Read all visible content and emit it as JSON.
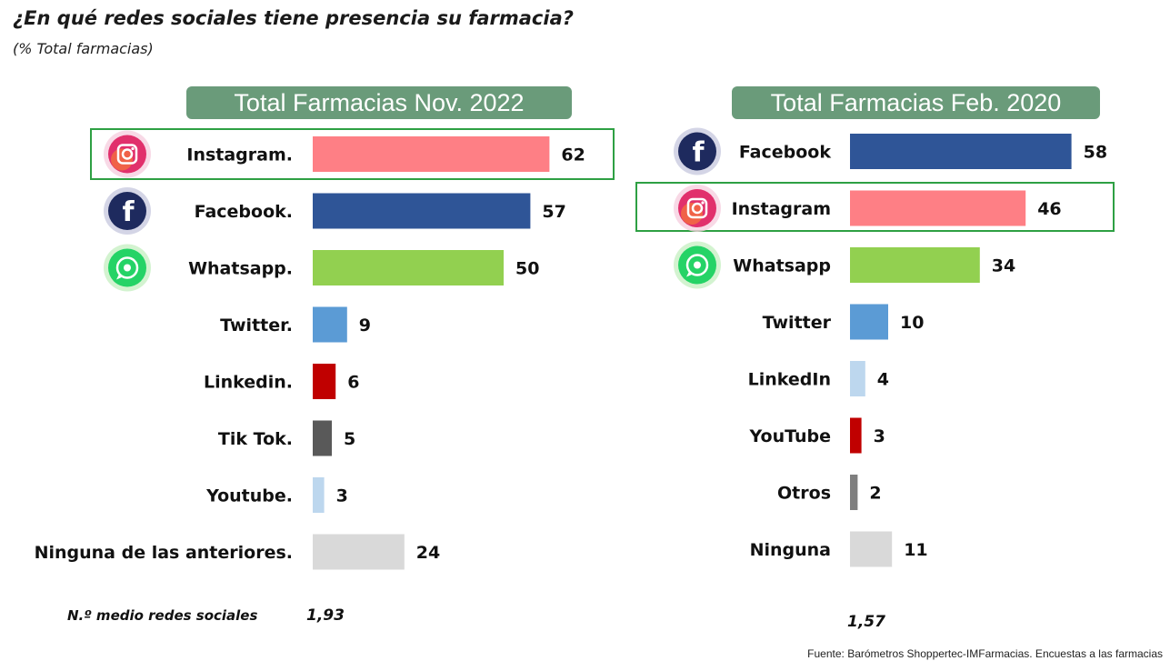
{
  "title": "¿En qué redes sociales tiene presencia su farmacia?",
  "subtitle": "(% Total farmacias)",
  "avg_label": "N.º medio redes sociales",
  "source": "Fuente: Barómetros Shoppertec-IMFarmacias. Encuestas a las farmacias",
  "colors": {
    "instagram": "#fe7f85",
    "facebook": "#2f5597",
    "whatsapp": "#92d050",
    "twitter": "#5b9bd5",
    "linkedin": "#c00000",
    "tiktok": "#595959",
    "youtube": "#bdd7ee",
    "otros": "#7f7f7f",
    "ninguna": "#d9d9d9",
    "highlight_border": "#2ea043",
    "panel_header": "#6a9b7a"
  },
  "chart_data": [
    {
      "type": "bar",
      "orientation": "horizontal",
      "title": "Total Farmacias Nov. 2022",
      "categories": [
        "Instagram.",
        "Facebook.",
        "Whatsapp.",
        "Twitter.",
        "Linkedin.",
        "Tik Tok.",
        "Youtube.",
        "Ninguna de las anteriores."
      ],
      "values": [
        62,
        57,
        50,
        9,
        6,
        5,
        3,
        24
      ],
      "value_labels": [
        "62",
        "57",
        "50",
        "9",
        "6",
        "5",
        "3",
        "24"
      ],
      "bar_colors": [
        "#fe7f85",
        "#2f5597",
        "#92d050",
        "#5b9bd5",
        "#c00000",
        "#595959",
        "#bdd7ee",
        "#d9d9d9"
      ],
      "icons": [
        "instagram-icon",
        "facebook-icon",
        "whatsapp-icon",
        "",
        "",
        "",
        "",
        ""
      ],
      "highlighted": "Instagram.",
      "average": "1,93"
    },
    {
      "type": "bar",
      "orientation": "horizontal",
      "title": "Total Farmacias Feb. 2020",
      "categories": [
        "Facebook",
        "Instagram",
        "Whatsapp",
        "Twitter",
        "LinkedIn",
        "YouTube",
        "Otros",
        "Ninguna"
      ],
      "values": [
        58,
        46,
        34,
        10,
        4,
        3,
        2,
        11
      ],
      "value_labels": [
        "58",
        "46",
        "34",
        "10",
        "4",
        "3",
        "2",
        "11"
      ],
      "bar_colors": [
        "#2f5597",
        "#fe7f85",
        "#92d050",
        "#5b9bd5",
        "#bdd7ee",
        "#c00000",
        "#7f7f7f",
        "#d9d9d9"
      ],
      "icons": [
        "facebook-icon",
        "instagram-icon",
        "whatsapp-icon",
        "",
        "",
        "",
        "",
        ""
      ],
      "highlighted": "Instagram",
      "average": "1,57"
    }
  ]
}
